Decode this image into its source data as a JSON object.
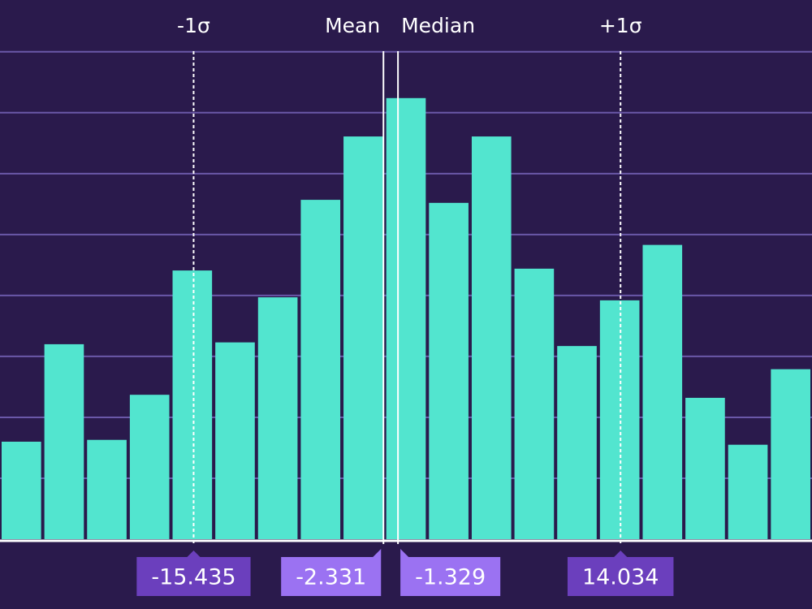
{
  "chart_data": {
    "type": "histogram",
    "bins": [
      -28.8,
      -25.85,
      -22.9,
      -19.95,
      -17,
      -14.05,
      -11.1,
      -8.15,
      -5.2,
      -2.25,
      0.7,
      3.65,
      6.6,
      9.55,
      12.5,
      15.45,
      18.4,
      21.35,
      24.3,
      27.25
    ],
    "values": [
      1.6,
      3.2,
      1.63,
      2.37,
      4.41,
      3.23,
      3.97,
      5.57,
      6.61,
      7.24,
      5.52,
      6.61,
      4.44,
      3.17,
      3.92,
      4.83,
      2.32,
      1.55,
      2.79
    ],
    "color": "#52e5cf",
    "xlim": [
      -28.8,
      27.25
    ],
    "ylim": [
      0,
      8.85
    ],
    "yticks": [
      1,
      2,
      3,
      4,
      5,
      6,
      7,
      8
    ],
    "grid": true,
    "markers": [
      {
        "label": "-1σ",
        "value": -15.435,
        "style": "dashed",
        "box_color": "#6b3fbd",
        "align": "center"
      },
      {
        "label": "Mean",
        "value": -2.331,
        "style": "solid",
        "box_color": "#9b72f2",
        "align": "left"
      },
      {
        "label": "Median",
        "value": -1.329,
        "style": "solid",
        "box_color": "#9b72f2",
        "align": "right"
      },
      {
        "label": "+1σ",
        "value": 14.034,
        "style": "dashed",
        "box_color": "#6b3fbd",
        "align": "center"
      }
    ]
  }
}
